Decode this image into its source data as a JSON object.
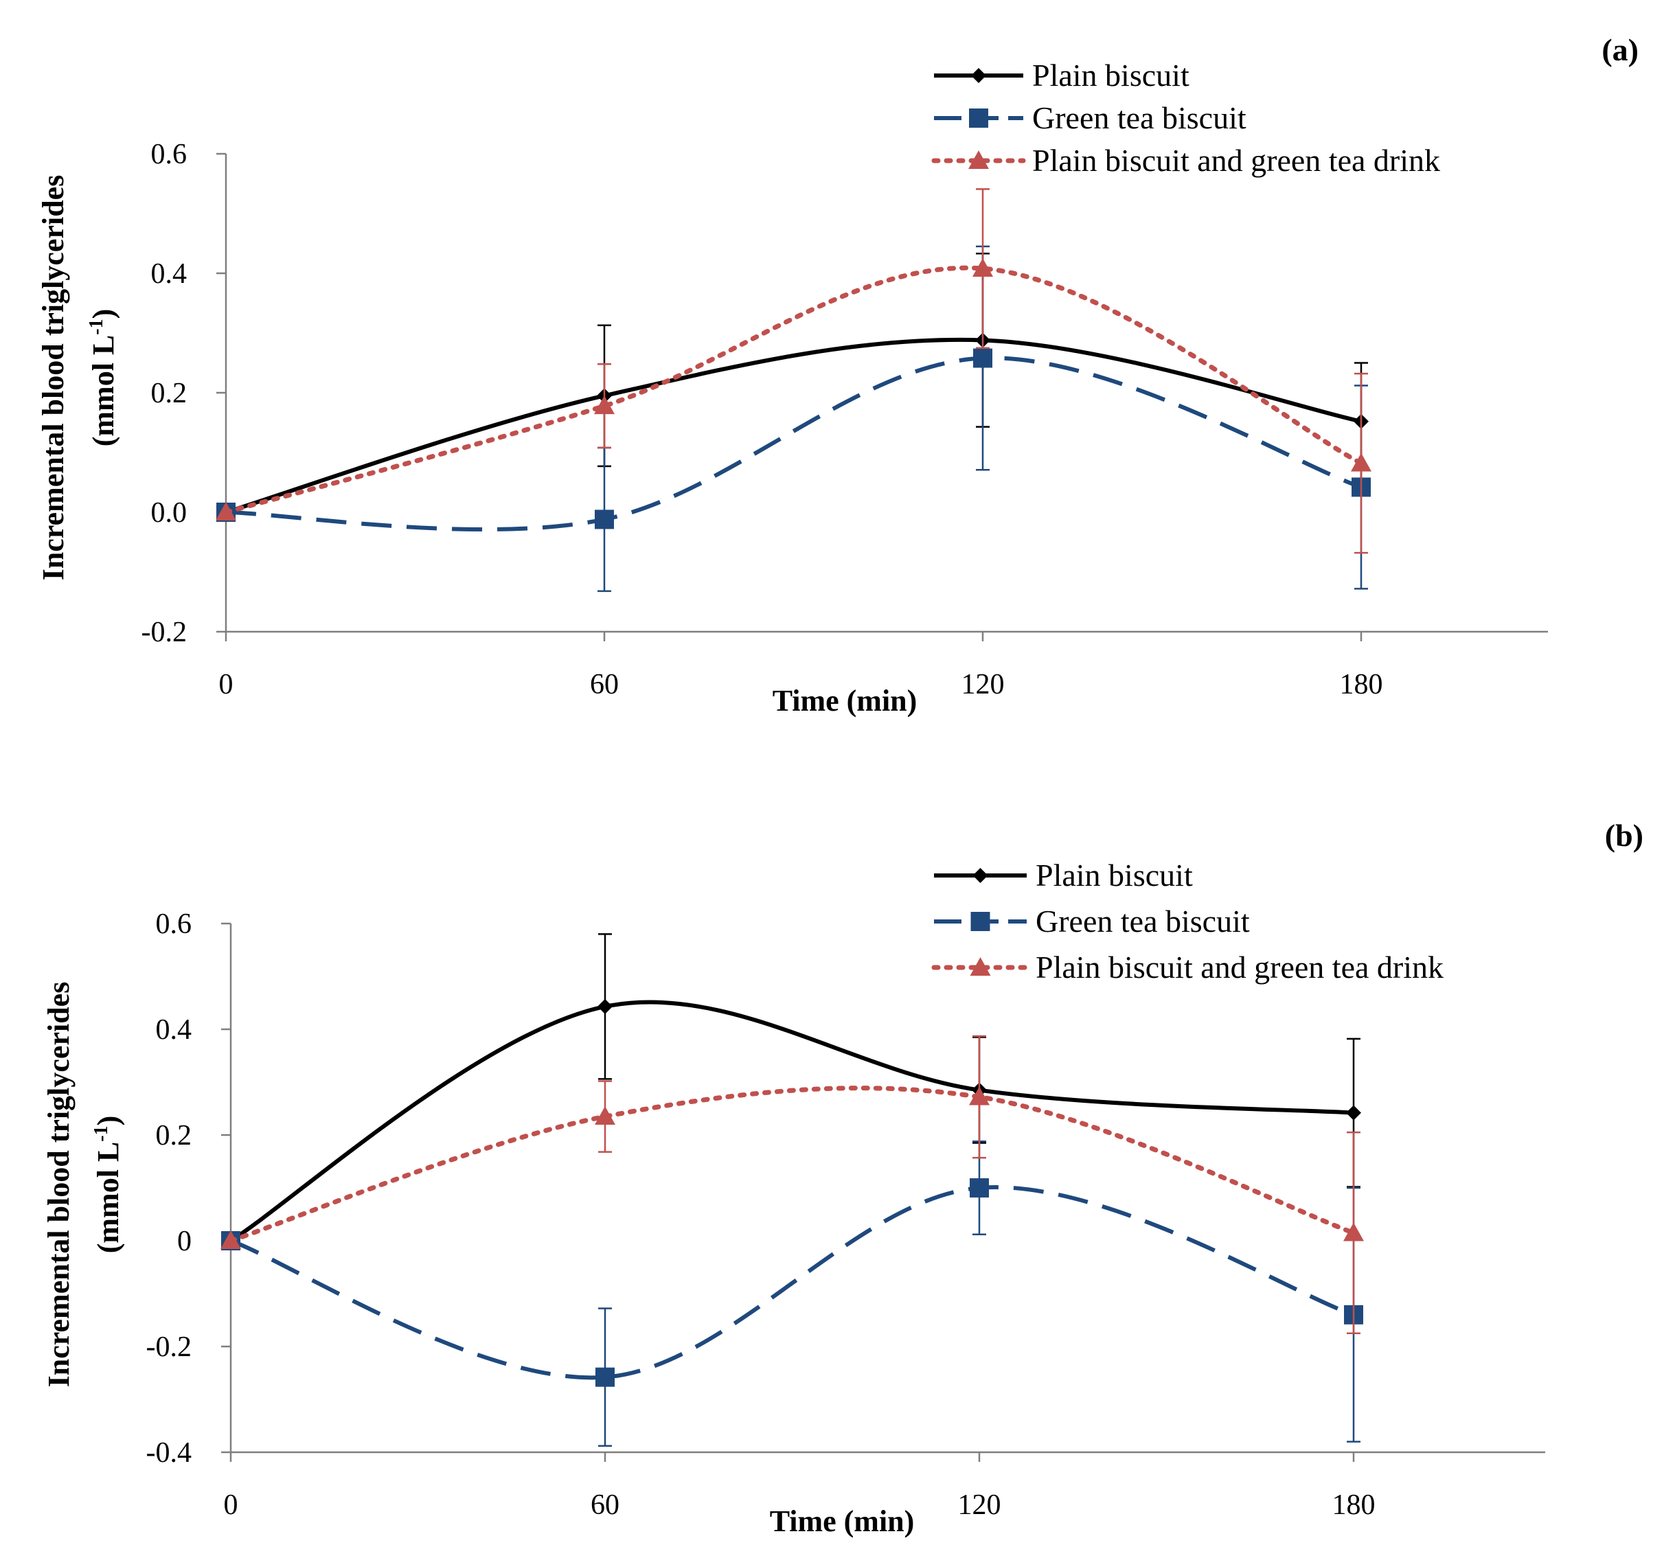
{
  "chart_data": [
    {
      "type": "line",
      "panel_label": "(a)",
      "x": [
        0,
        60,
        120,
        180
      ],
      "xticks": [
        "0",
        "60",
        "120",
        "180"
      ],
      "xlim": [
        0,
        210
      ],
      "ylim": [
        -0.2,
        0.6
      ],
      "yticks": [
        "0.6",
        "0.4",
        "0.2",
        "0.0",
        "-0.2"
      ],
      "ytick_values": [
        0.6,
        0.4,
        0.2,
        0.0,
        -0.2
      ],
      "xlabel": "Time (min)",
      "ylabel": "Incremental blood triglycerides",
      "ylabel_unit": "(mmol L",
      "ylabel_sup": "-1",
      "ylabel_close": ")",
      "legend_position": "top-right",
      "series": [
        {
          "name": "Plain biscuit",
          "style": "solid",
          "marker": "diamond",
          "color": "#000000",
          "values": [
            0.0,
            0.195,
            0.288,
            0.152
          ],
          "errors": [
            0.0,
            0.118,
            0.145,
            0.098
          ]
        },
        {
          "name": "Green tea biscuit",
          "style": "dashed",
          "marker": "square",
          "color": "#1f497d",
          "values": [
            0.0,
            -0.012,
            0.258,
            0.042
          ],
          "errors": [
            0.0,
            0.12,
            0.187,
            0.17
          ]
        },
        {
          "name": "Plain biscuit and green tea drink",
          "style": "dotted",
          "marker": "triangle",
          "color": "#c0504d",
          "values": [
            0.0,
            0.178,
            0.408,
            0.082
          ],
          "errors": [
            0.0,
            0.07,
            0.133,
            0.15
          ]
        }
      ]
    },
    {
      "type": "line",
      "panel_label": "(b)",
      "x": [
        0,
        60,
        120,
        180
      ],
      "xticks": [
        "0",
        "60",
        "120",
        "180"
      ],
      "xlim": [
        0,
        210
      ],
      "ylim": [
        -0.4,
        0.6
      ],
      "yticks": [
        "0.6",
        "0.4",
        "0.2",
        "0",
        "-0.2",
        "-0.4"
      ],
      "ytick_values": [
        0.6,
        0.4,
        0.2,
        0.0,
        -0.2,
        -0.4
      ],
      "xlabel": "Time (min)",
      "ylabel": "Incremental blood triglycerides",
      "ylabel_unit": "(mmol L",
      "ylabel_sup": "-1",
      "ylabel_close": ")",
      "legend_position": "top-right",
      "series": [
        {
          "name": "Plain biscuit",
          "style": "solid",
          "marker": "diamond",
          "color": "#000000",
          "values": [
            0.0,
            0.443,
            0.285,
            0.242
          ],
          "errors": [
            0.0,
            0.137,
            0.1,
            0.14
          ]
        },
        {
          "name": "Green tea biscuit",
          "style": "dashed",
          "marker": "square",
          "color": "#1f497d",
          "values": [
            0.0,
            -0.258,
            0.1,
            -0.14
          ],
          "errors": [
            0.0,
            0.13,
            0.088,
            0.24
          ]
        },
        {
          "name": "Plain biscuit and green tea drink",
          "style": "dotted",
          "marker": "triangle",
          "color": "#c0504d",
          "values": [
            0.0,
            0.235,
            0.272,
            0.015
          ],
          "errors": [
            0.0,
            0.067,
            0.115,
            0.19
          ]
        }
      ]
    }
  ]
}
